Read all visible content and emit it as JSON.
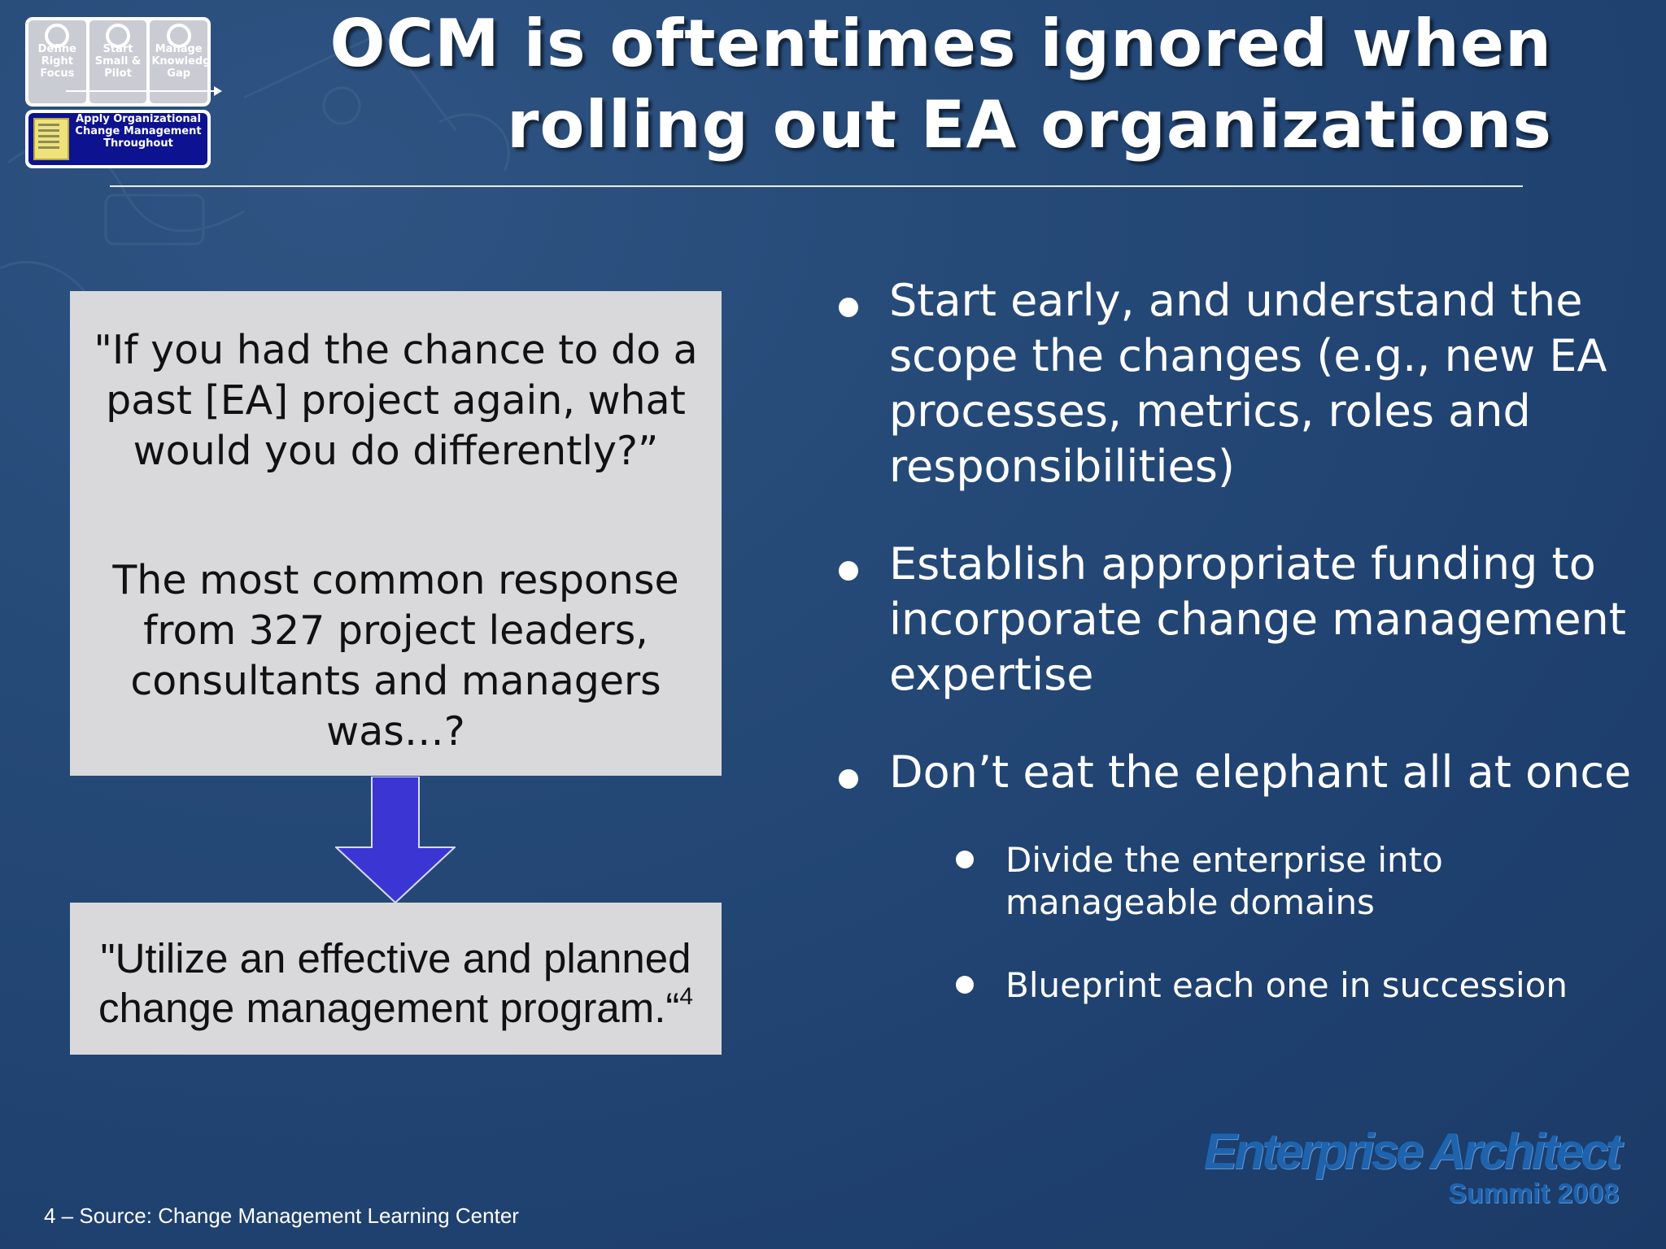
{
  "slide": {
    "title_line1": "OCM is oftentimes ignored when",
    "title_line2": "rolling out EA organizations"
  },
  "process_steps": [
    {
      "label": "Define Right Focus"
    },
    {
      "label": "Start Small & Pilot"
    },
    {
      "label": "Manage Knowledge Gap"
    }
  ],
  "ocm_step": {
    "label": "Apply Organizational Change Management Throughout"
  },
  "question_box": {
    "question": "\"If you had the chance to do a past [EA] project again, what would you do differently?”",
    "answer_intro": "The most common response from 327 project leaders, consultants and managers was…?"
  },
  "answer_box": {
    "text": "\"Utilize an effective and planned change management program.“",
    "footnote_ref": "4"
  },
  "bullets": [
    {
      "text": "Start early, and understand the scope the changes (e.g., new EA processes, metrics, roles and responsibilities)"
    },
    {
      "text": "Establish appropriate funding to incorporate change management expertise"
    },
    {
      "text": "Don’t eat the elephant all at once"
    }
  ],
  "sub_bullets": [
    {
      "text": "Divide the enterprise into manageable domains"
    },
    {
      "text": "Blueprint each one in succession"
    }
  ],
  "footnote": "4 – Source: Change Management Learning Center",
  "logo": {
    "name": "Enterprise Architect",
    "subtitle": "Summit 2008"
  },
  "colors": {
    "background": "#234676",
    "box_fill": "#d9d9db",
    "arrow_fill": "#3b36d3",
    "ocm_box_fill": "#0c1290",
    "logo_blue": "#1f63ad"
  }
}
